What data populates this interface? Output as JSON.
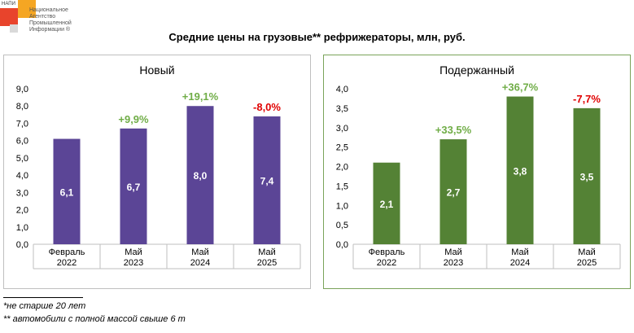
{
  "logo": {
    "tag": "НАПИ",
    "name_lines": [
      "Национальное",
      "Агентство",
      "Промышленной",
      "Информации ®"
    ]
  },
  "title": "Средние цены на грузовые** рефрижераторы, млн, руб.",
  "chart_data": [
    {
      "type": "bar",
      "title": "Новый",
      "categories": [
        [
          "Февраль",
          "2022"
        ],
        [
          "Май",
          "2023"
        ],
        [
          "Май",
          "2024"
        ],
        [
          "Май",
          "2025"
        ]
      ],
      "values": [
        6.1,
        6.7,
        8.0,
        7.4
      ],
      "value_labels": [
        "6,1",
        "6,7",
        "8,0",
        "7,4"
      ],
      "changes": [
        "",
        "+9,9%",
        "+19,1%",
        "-8,0%"
      ],
      "change_colors": [
        "",
        "#70ad47",
        "#70ad47",
        "#e00000"
      ],
      "ylim": [
        0,
        9
      ],
      "yticks": [
        "0,0",
        "1,0",
        "2,0",
        "3,0",
        "4,0",
        "5,0",
        "6,0",
        "7,0",
        "8,0",
        "9,0"
      ],
      "bar_color": "#5b4596",
      "grid": false
    },
    {
      "type": "bar",
      "title": "Подержанный",
      "categories": [
        [
          "Февраль",
          "2022"
        ],
        [
          "Май",
          "2023"
        ],
        [
          "Май",
          "2024"
        ],
        [
          "Май",
          "2025"
        ]
      ],
      "values": [
        2.1,
        2.7,
        3.8,
        3.5
      ],
      "value_labels": [
        "2,1",
        "2,7",
        "3,8",
        "3,5"
      ],
      "changes": [
        "",
        "+33,5%",
        "+36,7%",
        "-7,7%"
      ],
      "change_colors": [
        "",
        "#70ad47",
        "#70ad47",
        "#e00000"
      ],
      "ylim": [
        0,
        4
      ],
      "yticks": [
        "0,0",
        "0,5",
        "1,0",
        "1,5",
        "2,0",
        "2,5",
        "3,0",
        "3,5",
        "4,0"
      ],
      "bar_color": "#548235",
      "grid": false
    }
  ],
  "footnotes": [
    "*не старше 20 лет",
    "** автомобили с полной массой свыше 6 т"
  ]
}
